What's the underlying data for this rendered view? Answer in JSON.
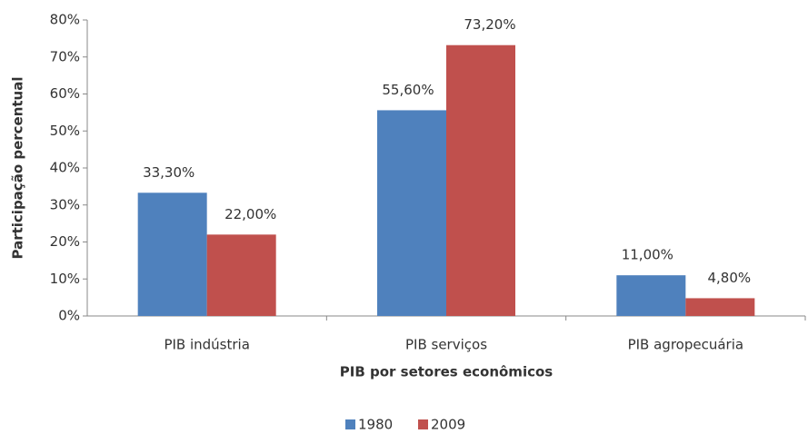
{
  "chart_data": {
    "type": "bar",
    "x_label": "PIB por setores econômicos",
    "y_label": "Participação percentual",
    "categories": [
      "PIB indústria",
      "PIB serviços",
      "PIB agropecuária"
    ],
    "series": [
      {
        "name": "1980",
        "color": "#4f81bd",
        "values": [
          33.3,
          55.6,
          11.0
        ],
        "value_labels": [
          "33,30%",
          "55,60%",
          "11,00%"
        ]
      },
      {
        "name": "2009",
        "color": "#c0504d",
        "values": [
          22.0,
          73.2,
          4.8
        ],
        "value_labels": [
          "22,00%",
          "73,20%",
          "4,80%"
        ]
      }
    ],
    "ylim": [
      0,
      80
    ],
    "yticks": [
      {
        "value": 0,
        "label": "0%"
      },
      {
        "value": 10,
        "label": "10%"
      },
      {
        "value": 20,
        "label": "20%"
      },
      {
        "value": 30,
        "label": "30%"
      },
      {
        "value": 40,
        "label": "40%"
      },
      {
        "value": 50,
        "label": "50%"
      },
      {
        "value": 60,
        "label": "60%"
      },
      {
        "value": 70,
        "label": "70%"
      },
      {
        "value": 80,
        "label": "80%"
      }
    ],
    "grid": false,
    "legend": "bottom"
  }
}
